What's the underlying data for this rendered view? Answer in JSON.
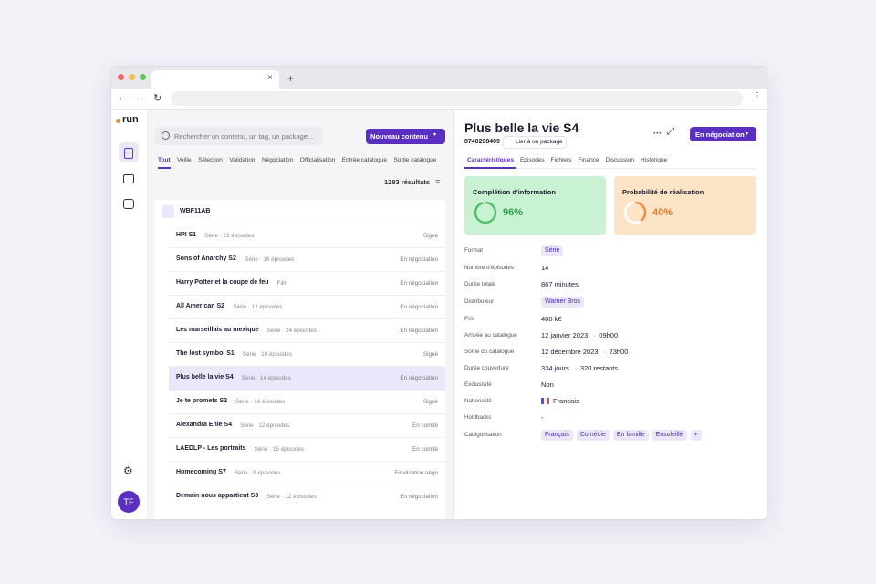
{
  "sidebar": {
    "logo": "run",
    "avatar": "TF"
  },
  "list_panel": {
    "search_placeholder": "Rechercher un contenu, un tag, un package...",
    "new_button": "Nouveau contenu",
    "tabs": [
      "Tout",
      "Veille",
      "Sélection",
      "Validation",
      "Négociation",
      "Officialisation",
      "Entrée catalogue",
      "Sortie catalogue"
    ],
    "active_tab": 0,
    "results": "1283 résultats",
    "group": "WBF11AB",
    "selected_row": 6,
    "rows": [
      {
        "name": "HPI S1",
        "meta": "Série · 23 épisodes",
        "status": "Signé"
      },
      {
        "name": "Sons of Anarchy S2",
        "meta": "Série · 16 épisodes",
        "status": "En négociation"
      },
      {
        "name": "Harry Potter et la coupe de feu",
        "meta": "Film",
        "status": "En négociation"
      },
      {
        "name": "All American S2",
        "meta": "Série · 12 épisodes",
        "status": "En négociation"
      },
      {
        "name": "Les marseillais au mexique",
        "meta": "Série · 24 épisodes",
        "status": "En négociation"
      },
      {
        "name": "The lost symbol S1",
        "meta": "Série · 10 épisodes",
        "status": "Signé"
      },
      {
        "name": "Plus belle la vie S4",
        "meta": "Série · 14 épisodes",
        "status": "En négociation"
      },
      {
        "name": "Je te promets S2",
        "meta": "Série · 16 épisodes",
        "status": "Signé"
      },
      {
        "name": "Alexandra Ehle S4",
        "meta": "Série · 12 épisodes",
        "status": "En comité"
      },
      {
        "name": "LAEDLP - Les portraits",
        "meta": "Série · 15 épisodes",
        "status": "En comité"
      },
      {
        "name": "Homecoming S7",
        "meta": "Série · 9 épisodes",
        "status": "Finalisation négo"
      },
      {
        "name": "Demain nous appartient S3",
        "meta": "Série · 12 épisodes",
        "status": "En négociation"
      }
    ]
  },
  "detail": {
    "title": "Plus belle la vie S4",
    "id": "8740298409",
    "link": "Lier à un package",
    "status_button": "En négociation",
    "tabs": [
      "Caractéristiques",
      "Episodes",
      "Fichiers",
      "Finance",
      "Discussion",
      "Historique"
    ],
    "active_tab": 0,
    "cards": [
      {
        "title": "Complétion d'information",
        "value": "96%"
      },
      {
        "title": "Probabilité de réalisation",
        "value": "40%"
      }
    ],
    "properties": [
      {
        "label": "Format",
        "chips": [
          "Série"
        ]
      },
      {
        "label": "Nombre d'épisodes",
        "values": [
          "14"
        ]
      },
      {
        "label": "Durée totale",
        "values": [
          "867 minutes"
        ]
      },
      {
        "label": "Distributeur",
        "chips": [
          "Warner Bros"
        ]
      },
      {
        "label": "Prix",
        "values": [
          "400 k€"
        ]
      },
      {
        "label": "Arrivée au catalogue",
        "values": [
          "12 janvier 2023",
          "09h00"
        ]
      },
      {
        "label": "Sortie du catalogue",
        "values": [
          "12 décembre 2023",
          "23h00"
        ]
      },
      {
        "label": "Durée couverture",
        "values": [
          "334 jours",
          "320 restants"
        ]
      },
      {
        "label": "Exclusivité",
        "values": [
          "Non"
        ]
      },
      {
        "label": "Nationalité",
        "flag_value": "Francais"
      },
      {
        "label": "Holdbacks",
        "values": [
          "-"
        ]
      },
      {
        "label": "Catégorisation",
        "chips": [
          "Français",
          "Comédie",
          "En famille",
          "Ensoleillé",
          "+"
        ]
      }
    ]
  }
}
